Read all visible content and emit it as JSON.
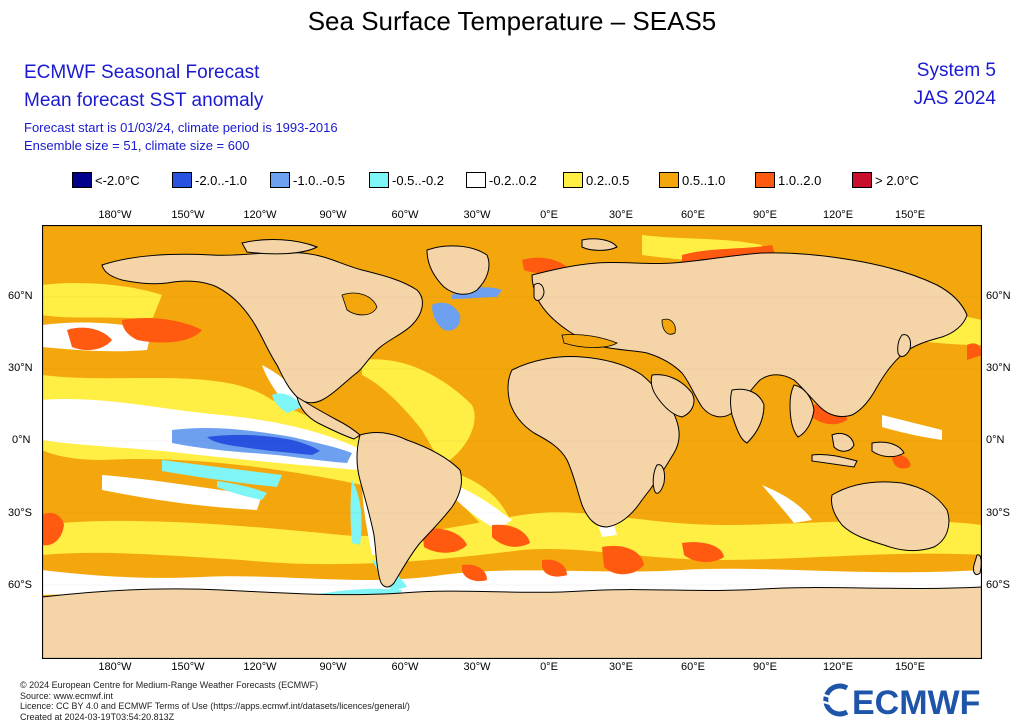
{
  "title": "Sea Surface Temperature – SEAS5",
  "header": {
    "heading": "ECMWF Seasonal Forecast",
    "subheading": "Mean forecast SST anomaly",
    "forecast_start": "Forecast start is 01/03/24, climate period is 1993-2016",
    "ensemble": "Ensemble size = 51, climate size = 600",
    "system": "System 5",
    "period": "JAS 2024"
  },
  "legend": [
    {
      "label": "<-2.0°C",
      "color": "#00008b"
    },
    {
      "label": "-2.0..-1.0",
      "color": "#2a52e0"
    },
    {
      "label": "-1.0..-0.5",
      "color": "#6ea0f0"
    },
    {
      "label": "-0.5..-0.2",
      "color": "#7ff5f5"
    },
    {
      "label": "-0.2..0.2",
      "color": "#ffffff"
    },
    {
      "label": "0.2..0.5",
      "color": "#ffee44"
    },
    {
      "label": "0.5..1.0",
      "color": "#f4a70c"
    },
    {
      "label": "1.0..2.0",
      "color": "#ff5a10"
    },
    {
      "label": "> 2.0°C",
      "color": "#c8102e"
    }
  ],
  "longitude_labels": [
    "180°W",
    "150°W",
    "120°W",
    "90°W",
    "60°W",
    "30°W",
    "0°E",
    "30°E",
    "60°E",
    "90°E",
    "120°E",
    "150°E"
  ],
  "latitude_labels": [
    "60°N",
    "30°N",
    "0°N",
    "30°S",
    "60°S"
  ],
  "colors": {
    "land": "#f5d5a8",
    "coast": "#000000"
  },
  "footer": {
    "copyright": "© 2024 European Centre for Medium-Range Weather Forecasts (ECMWF)",
    "source": "Source: www.ecmwf.int",
    "licence": "Licence: CC BY 4.0 and ECMWF Terms of Use (https://apps.ecmwf.int/datasets/licences/general/)",
    "created": "Created at 2024-03-19T03:54:20.813Z"
  },
  "logo": {
    "text": "ECMWF"
  }
}
